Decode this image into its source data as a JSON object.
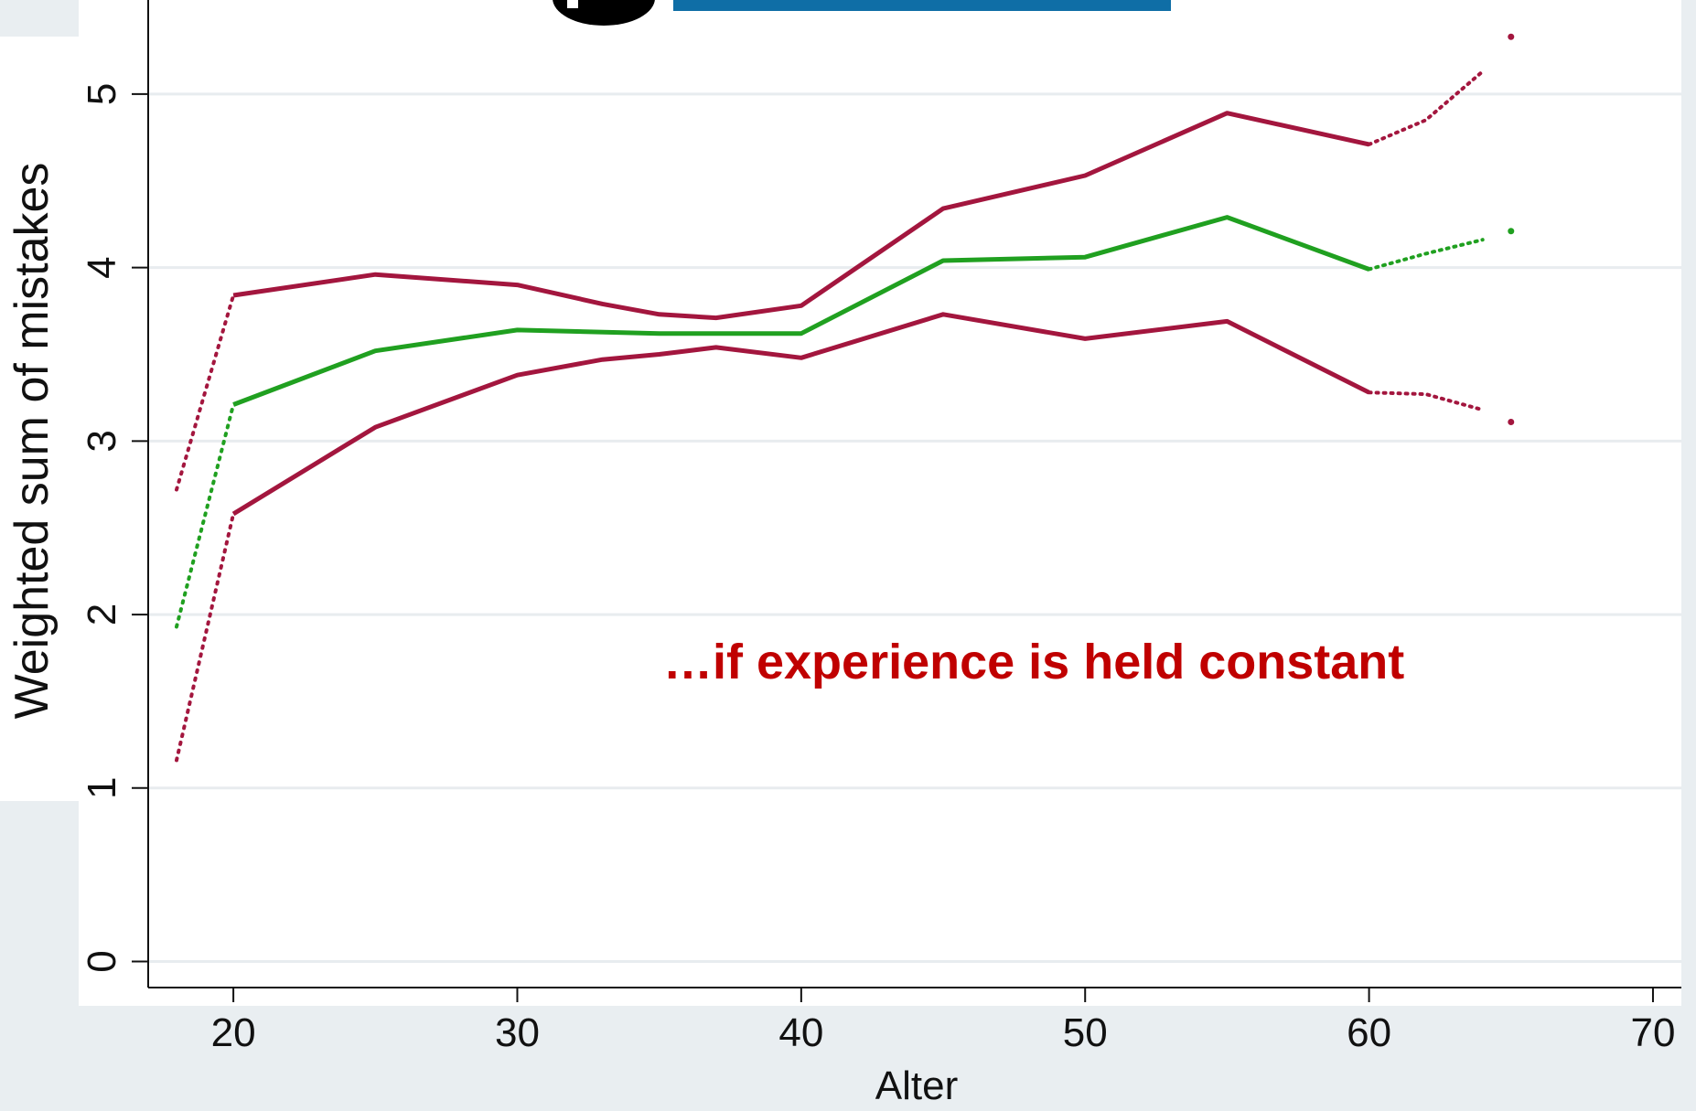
{
  "chart_data": {
    "type": "line",
    "xlabel": "Alter",
    "ylabel": "Weighted sum of mistakes",
    "xlim": [
      17,
      71
    ],
    "ylim": [
      -0.15,
      5.5
    ],
    "x_ticks": [
      "20",
      "30",
      "40",
      "50",
      "60",
      "70"
    ],
    "y_ticks": [
      "0",
      "1",
      "2",
      "3",
      "4",
      "5"
    ],
    "grid": "horizontal",
    "annotation": "…if experience is held constant",
    "series": [
      {
        "role": "upper-ci",
        "color": "#a3163e",
        "solid": [
          [
            20,
            3.84
          ],
          [
            25,
            3.96
          ],
          [
            30,
            3.9
          ],
          [
            33,
            3.79
          ],
          [
            35,
            3.73
          ],
          [
            37,
            3.71
          ],
          [
            40,
            3.78
          ],
          [
            45,
            4.34
          ],
          [
            50,
            4.53
          ],
          [
            55,
            4.89
          ],
          [
            60,
            4.71
          ]
        ],
        "dotted": [
          [
            18,
            2.72
          ],
          [
            20,
            3.84
          ]
        ],
        "dotted_tail": [
          [
            60,
            4.71
          ],
          [
            62,
            4.85
          ],
          [
            64,
            5.13
          ]
        ],
        "isolated": [
          [
            65,
            5.33
          ]
        ]
      },
      {
        "role": "estimate",
        "color": "#20a020",
        "solid": [
          [
            20,
            3.21
          ],
          [
            25,
            3.52
          ],
          [
            30,
            3.64
          ],
          [
            35,
            3.62
          ],
          [
            40,
            3.62
          ],
          [
            45,
            4.04
          ],
          [
            50,
            4.06
          ],
          [
            55,
            4.29
          ],
          [
            60,
            3.99
          ]
        ],
        "dotted": [
          [
            18,
            1.93
          ],
          [
            20,
            3.21
          ]
        ],
        "dotted_tail": [
          [
            60,
            3.99
          ],
          [
            62,
            4.08
          ],
          [
            64,
            4.16
          ]
        ],
        "isolated": [
          [
            65,
            4.21
          ]
        ]
      },
      {
        "role": "lower-ci",
        "color": "#a3163e",
        "solid": [
          [
            20,
            2.58
          ],
          [
            25,
            3.08
          ],
          [
            30,
            3.38
          ],
          [
            33,
            3.47
          ],
          [
            35,
            3.5
          ],
          [
            37,
            3.54
          ],
          [
            40,
            3.48
          ],
          [
            45,
            3.73
          ],
          [
            50,
            3.59
          ],
          [
            55,
            3.69
          ],
          [
            60,
            3.28
          ]
        ],
        "dotted": [
          [
            18,
            1.16
          ],
          [
            20,
            2.58
          ]
        ],
        "dotted_tail": [
          [
            60,
            3.28
          ],
          [
            62,
            3.27
          ],
          [
            64,
            3.18
          ]
        ],
        "isolated": [
          [
            65,
            3.11
          ]
        ]
      }
    ],
    "colors": {
      "panel_bg": "#ffffff",
      "page_bg": "#e9eef1",
      "gridline": "#e8ecef",
      "annotation": "#c00000",
      "header_bar": "#0f6ea6",
      "header_circle": "#000000"
    }
  }
}
